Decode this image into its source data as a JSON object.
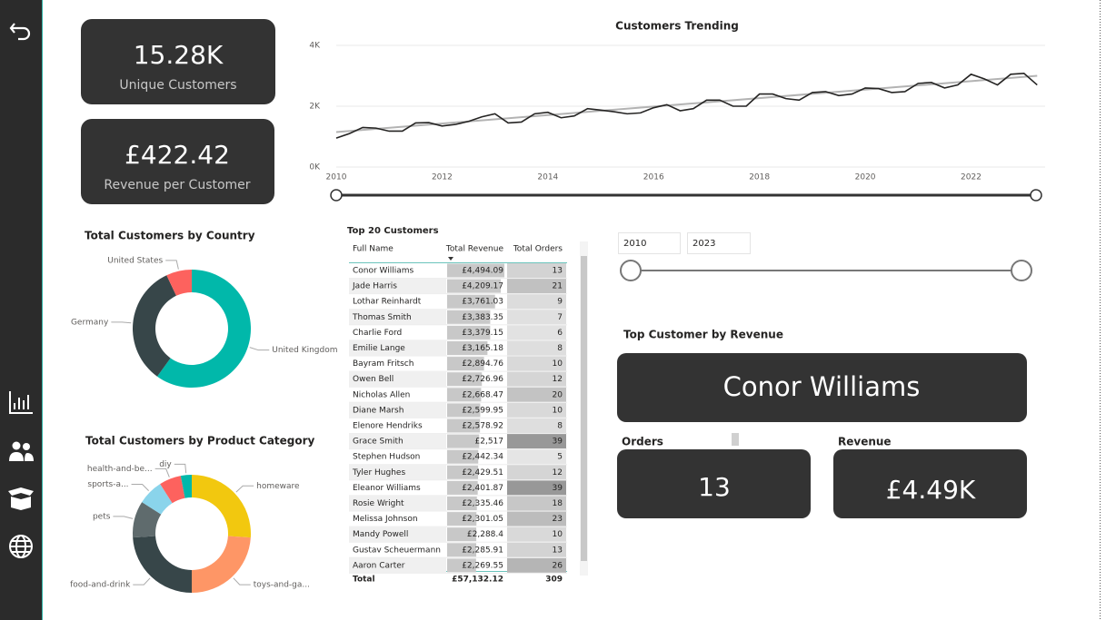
{
  "cards": [
    {
      "value": "15.28K",
      "label": "Unique Customers"
    },
    {
      "value": "£422.42",
      "label": "Revenue per Customer"
    }
  ],
  "chart_data": [
    {
      "type": "line",
      "title": "Customers Trending",
      "x": [
        2010,
        2010.25,
        2010.5,
        2010.75,
        2011,
        2011.25,
        2011.5,
        2011.75,
        2012,
        2012.25,
        2012.5,
        2012.75,
        2013,
        2013.25,
        2013.5,
        2013.75,
        2014,
        2014.25,
        2014.5,
        2014.75,
        2015,
        2015.25,
        2015.5,
        2015.75,
        2016,
        2016.25,
        2016.5,
        2016.75,
        2017,
        2017.25,
        2017.5,
        2017.75,
        2018,
        2018.25,
        2018.5,
        2018.75,
        2019,
        2019.25,
        2019.5,
        2019.75,
        2020,
        2020.25,
        2020.5,
        2020.75,
        2021,
        2021.25,
        2021.5,
        2021.75,
        2022,
        2022.25,
        2022.5,
        2022.75,
        2023,
        2023.25
      ],
      "series": [
        {
          "color": "#252423",
          "values": [
            950,
            1100,
            1300,
            1280,
            1180,
            1180,
            1450,
            1460,
            1350,
            1400,
            1500,
            1650,
            1750,
            1450,
            1480,
            1750,
            1800,
            1620,
            1680,
            1920,
            1870,
            1820,
            1750,
            1780,
            1950,
            2050,
            1850,
            1920,
            2200,
            2200,
            2000,
            2000,
            2400,
            2400,
            2250,
            2200,
            2450,
            2480,
            2350,
            2400,
            2600,
            2580,
            2450,
            2480,
            2750,
            2780,
            2600,
            2700,
            3050,
            2900,
            2700,
            3050,
            3080,
            2700
          ]
        }
      ],
      "trend": {
        "x": [
          2010,
          2023.25
        ],
        "values": [
          1150,
          3000
        ],
        "color": "#b3b3b3"
      },
      "xlim": [
        2010,
        2023.4
      ],
      "ylim": [
        0,
        4000
      ],
      "xticks": [
        2010,
        2012,
        2014,
        2016,
        2018,
        2020,
        2022
      ],
      "yticks": [
        {
          "value": 0,
          "label": "0K"
        },
        {
          "value": 2000,
          "label": "2K"
        },
        {
          "value": 4000,
          "label": "4K"
        }
      ],
      "grid": true
    },
    {
      "type": "donut",
      "title": "Total Customers by Country",
      "categories": [
        "United Kingdom",
        "Germany",
        "United States"
      ],
      "values": [
        9160,
        5050,
        1070
      ],
      "colors": [
        "#01b8aa",
        "#374649",
        "#fd625e"
      ]
    },
    {
      "type": "donut",
      "title": "Total Customers by Product Category",
      "categories": [
        "homeware",
        "toys-and-ga...",
        "food-and-drink",
        "pets",
        "sports-a...",
        "health-and-be...",
        "diy"
      ],
      "values": [
        26,
        24,
        24,
        10,
        7,
        6,
        3
      ],
      "colors": [
        "#f2c80f",
        "#fe9666",
        "#374649",
        "#5f6b6d",
        "#8ad4eb",
        "#fd625e",
        "#01b8aa"
      ]
    }
  ],
  "table": {
    "title": "Top 20 Customers",
    "columns": [
      "Full Name",
      "Total Revenue",
      "Total Orders"
    ],
    "rows": [
      {
        "name": "Conor Williams",
        "revenue": 4494.09,
        "revenue_label": "£4,494.09",
        "orders": 13
      },
      {
        "name": "Jade Harris",
        "revenue": 4209.17,
        "revenue_label": "£4,209.17",
        "orders": 21
      },
      {
        "name": "Lothar Reinhardt",
        "revenue": 3761.03,
        "revenue_label": "£3,761.03",
        "orders": 9
      },
      {
        "name": "Thomas Smith",
        "revenue": 3383.35,
        "revenue_label": "£3,383.35",
        "orders": 7
      },
      {
        "name": "Charlie Ford",
        "revenue": 3379.15,
        "revenue_label": "£3,379.15",
        "orders": 6
      },
      {
        "name": "Emilie Lange",
        "revenue": 3165.18,
        "revenue_label": "£3,165.18",
        "orders": 8
      },
      {
        "name": "Bayram Fritsch",
        "revenue": 2894.76,
        "revenue_label": "£2,894.76",
        "orders": 10
      },
      {
        "name": "Owen Bell",
        "revenue": 2726.96,
        "revenue_label": "£2,726.96",
        "orders": 12
      },
      {
        "name": "Nicholas Allen",
        "revenue": 2668.47,
        "revenue_label": "£2,668.47",
        "orders": 20
      },
      {
        "name": "Diane Marsh",
        "revenue": 2599.95,
        "revenue_label": "£2,599.95",
        "orders": 10
      },
      {
        "name": "Elenore Hendriks",
        "revenue": 2578.92,
        "revenue_label": "£2,578.92",
        "orders": 8
      },
      {
        "name": "Grace Smith",
        "revenue": 2517,
        "revenue_label": "£2,517",
        "orders": 39
      },
      {
        "name": "Stephen Hudson",
        "revenue": 2442.34,
        "revenue_label": "£2,442.34",
        "orders": 5
      },
      {
        "name": "Tyler Hughes",
        "revenue": 2429.51,
        "revenue_label": "£2,429.51",
        "orders": 12
      },
      {
        "name": "Eleanor Williams",
        "revenue": 2401.87,
        "revenue_label": "£2,401.87",
        "orders": 39
      },
      {
        "name": "Rosie Wright",
        "revenue": 2335.46,
        "revenue_label": "£2,335.46",
        "orders": 18
      },
      {
        "name": "Melissa Johnson",
        "revenue": 2301.05,
        "revenue_label": "£2,301.05",
        "orders": 23
      },
      {
        "name": "Mandy Powell",
        "revenue": 2288.4,
        "revenue_label": "£2,288.4",
        "orders": 10
      },
      {
        "name": "Gustav Scheuermann",
        "revenue": 2285.91,
        "revenue_label": "£2,285.91",
        "orders": 13
      },
      {
        "name": "Aaron Carter",
        "revenue": 2269.55,
        "revenue_label": "£2,269.55",
        "orders": 26
      }
    ],
    "total": {
      "label": "Total",
      "revenue": "£57,132.12",
      "orders": 309
    }
  },
  "slicer": {
    "from": "2010",
    "to": "2023"
  },
  "top_customer": {
    "title": "Top Customer by Revenue",
    "name": "Conor Williams",
    "orders_title": "Orders",
    "orders": 13,
    "revenue_title": "Revenue",
    "revenue": "£4.49K"
  }
}
